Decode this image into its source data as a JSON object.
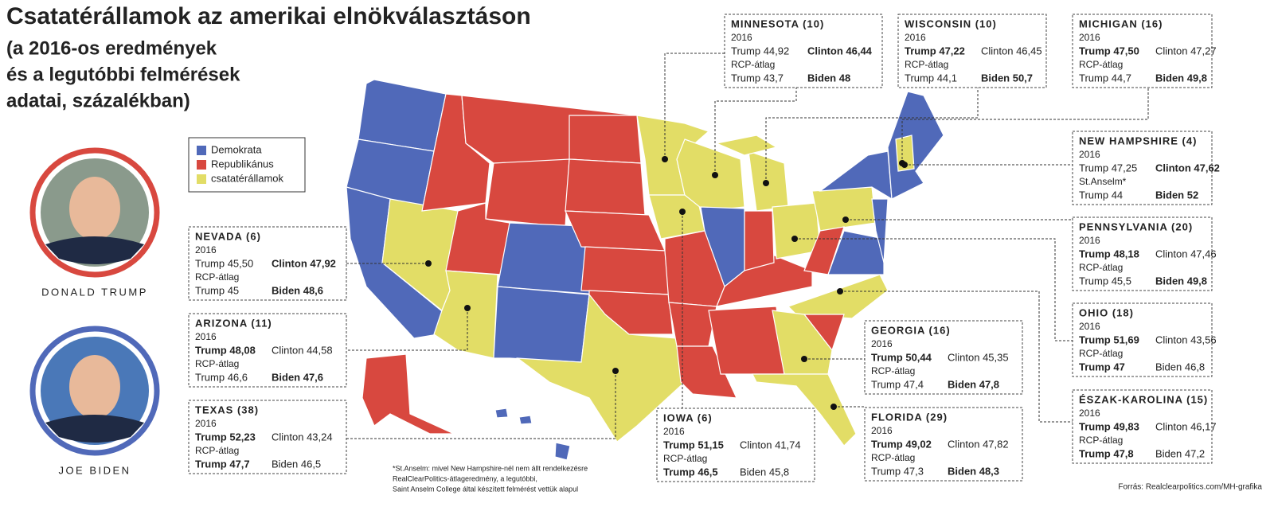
{
  "title": "Csatatérállamok az amerikai elnökválasztáson",
  "subtitle": [
    "(a 2016-os eredmények",
    "és a legutóbbi felmérések",
    "adatai, százalékban)"
  ],
  "legend": [
    {
      "label": "Demokrata",
      "color": "#5069b9"
    },
    {
      "label": "Republikánus",
      "color": "#d8483f"
    },
    {
      "label": "csatatérállamok",
      "color": "#e2dd66"
    }
  ],
  "portraits": [
    {
      "name": "DONALD TRUMP",
      "ring": "#d8483f"
    },
    {
      "name": "JOE BIDEN",
      "ring": "#5069b9"
    }
  ],
  "year": "2016",
  "states": [
    {
      "name": "MINNESOTA (10)",
      "result_2016": [
        "Trump 44,92",
        "Clinton 46,44"
      ],
      "bold_2016": 1,
      "poll_source": "RCP-átlag",
      "poll": [
        "Trump 43,7",
        "Biden 48"
      ],
      "bold_poll": 1
    },
    {
      "name": "WISCONSIN (10)",
      "result_2016": [
        "Trump 47,22",
        "Clinton 46,45"
      ],
      "bold_2016": 0,
      "poll_source": "RCP-átlag",
      "poll": [
        "Trump 44,1",
        "Biden 50,7"
      ],
      "bold_poll": 1
    },
    {
      "name": "MICHIGAN (16)",
      "result_2016": [
        "Trump 47,50",
        "Clinton 47,27"
      ],
      "bold_2016": 0,
      "poll_source": "RCP-átlag",
      "poll": [
        "Trump 44,7",
        "Biden 49,8"
      ],
      "bold_poll": 1
    },
    {
      "name": "NEW HAMPSHIRE (4)",
      "result_2016": [
        "Trump 47,25",
        "Clinton 47,62"
      ],
      "bold_2016": 1,
      "poll_source": "St.Anselm*",
      "poll": [
        "Trump 44",
        "Biden 52"
      ],
      "bold_poll": 1
    },
    {
      "name": "PENNSYLVANIA (20)",
      "result_2016": [
        "Trump 48,18",
        "Clinton 47,46"
      ],
      "bold_2016": 0,
      "poll_source": "RCP-átlag",
      "poll": [
        "Trump 45,5",
        "Biden 49,8"
      ],
      "bold_poll": 1
    },
    {
      "name": "OHIO (18)",
      "result_2016": [
        "Trump 51,69",
        "Clinton 43,56"
      ],
      "bold_2016": 0,
      "poll_source": "RCP-átlag",
      "poll": [
        "Trump 47",
        "Biden 46,8"
      ],
      "bold_poll": 0
    },
    {
      "name": "ÉSZAK-KAROLINA (15)",
      "result_2016": [
        "Trump 49,83",
        "Clinton 46,17"
      ],
      "bold_2016": 0,
      "poll_source": "RCP-átlag",
      "poll": [
        "Trump 47,8",
        "Biden 47,2"
      ],
      "bold_poll": 0
    },
    {
      "name": "NEVADA (6)",
      "result_2016": [
        "Trump 45,50",
        "Clinton 47,92"
      ],
      "bold_2016": 1,
      "poll_source": "RCP-átlag",
      "poll": [
        "Trump 45",
        "Biden 48,6"
      ],
      "bold_poll": 1
    },
    {
      "name": "ARIZONA (11)",
      "result_2016": [
        "Trump 48,08",
        "Clinton 44,58"
      ],
      "bold_2016": 0,
      "poll_source": "RCP-átlag",
      "poll": [
        "Trump 46,6",
        "Biden 47,6"
      ],
      "bold_poll": 1
    },
    {
      "name": "TEXAS (38)",
      "result_2016": [
        "Trump 52,23",
        "Clinton 43,24"
      ],
      "bold_2016": 0,
      "poll_source": "RCP-átlag",
      "poll": [
        "Trump 47,7",
        "Biden 46,5"
      ],
      "bold_poll": 0
    },
    {
      "name": "GEORGIA (16)",
      "result_2016": [
        "Trump 50,44",
        "Clinton 45,35"
      ],
      "bold_2016": 0,
      "poll_source": "RCP-átlag",
      "poll": [
        "Trump 47,4",
        "Biden 47,8"
      ],
      "bold_poll": 1
    },
    {
      "name": "IOWA (6)",
      "result_2016": [
        "Trump 51,15",
        "Clinton 41,74"
      ],
      "bold_2016": 0,
      "poll_source": "RCP-átlag",
      "poll": [
        "Trump 46,5",
        "Biden 45,8"
      ],
      "bold_poll": 0
    },
    {
      "name": "FLORIDA (29)",
      "result_2016": [
        "Trump 49,02",
        "Clinton 47,82"
      ],
      "bold_2016": 0,
      "poll_source": "RCP-átlag",
      "poll": [
        "Trump 47,3",
        "Biden 48,3"
      ],
      "bold_poll": 1
    }
  ],
  "footnote": [
    "*St.Anselm: mivel New Hampshire-nél nem állt rendelkezésre",
    "RealClearPolitics-átlageredmény, a legutóbbi,",
    "Saint Anselm College által készített felmérést vettük alapul"
  ],
  "source": "Forrás: Realclearpolitics.com/MH-grafika"
}
